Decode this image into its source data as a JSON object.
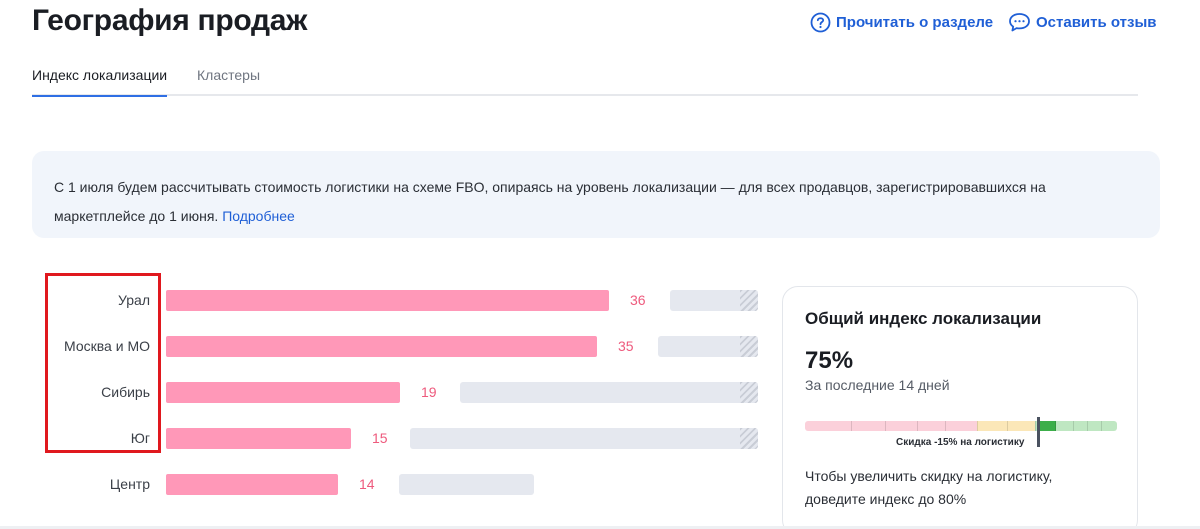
{
  "header": {
    "title": "География продаж",
    "read_link": "Прочитать о разделе",
    "feedback_link": "Оставить отзыв"
  },
  "tabs": [
    {
      "label": "Индекс локализации",
      "active": true
    },
    {
      "label": "Кластеры",
      "active": false
    }
  ],
  "notice": {
    "text": "С 1 июля будем рассчитывать стоимость логистики на схеме FBO, опираясь на уровень локализации — для всех продавцов, зарегистрировавшихся на маркетплейсе до 1 июня.",
    "link": "Подробнее"
  },
  "chart_data": {
    "type": "bar",
    "orientation": "horizontal",
    "categories": [
      "Урал",
      "Москва и МО",
      "Сибирь",
      "Юг",
      "Центр"
    ],
    "values": [
      36,
      35,
      19,
      15,
      14
    ],
    "colors": {
      "bar": "#ff98b8",
      "value": "#ee5a7d",
      "track": "#e5e8ef"
    }
  },
  "summary": {
    "title": "Общий индекс локализации",
    "value": "75%",
    "period": "За последние 14 дней",
    "scale_label": "Скидка -15% на логистику",
    "index_level": 0.75,
    "hint": "Чтобы увеличить скидку на логистику, доведите индекс до 80%"
  },
  "colors": {
    "accent": "#1f5fd6",
    "highlight": "#e0181e"
  }
}
